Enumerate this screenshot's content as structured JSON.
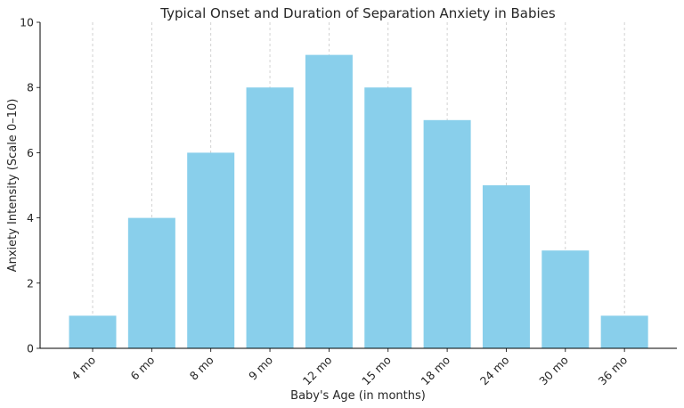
{
  "chart_data": {
    "type": "bar",
    "title": "Typical Onset and Duration of Separation Anxiety in Babies",
    "xlabel": "Baby's Age (in months)",
    "ylabel": "Anxiety Intensity (Scale 0–10)",
    "categories": [
      "4 mo",
      "6 mo",
      "8 mo",
      "9 mo",
      "12 mo",
      "15 mo",
      "18 mo",
      "24 mo",
      "30 mo",
      "36 mo"
    ],
    "values": [
      1,
      4,
      6,
      8,
      9,
      8,
      7,
      5,
      3,
      1
    ],
    "ylim": [
      0,
      10
    ],
    "yticks": [
      "0",
      "2",
      "4",
      "6",
      "8",
      "10"
    ],
    "grid": "vertical dashed",
    "bar_color": "#89cfeb"
  }
}
